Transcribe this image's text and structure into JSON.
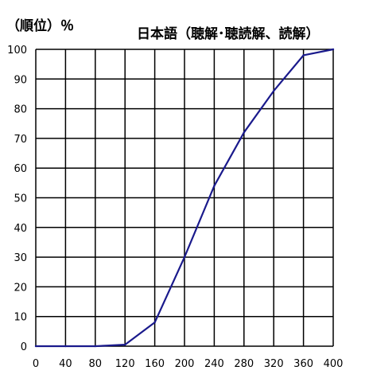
{
  "chart_data": {
    "type": "line",
    "title": "日本語（聴解･聴読解、読解）",
    "ylabel": "（順位）％",
    "xlabel": "",
    "x": [
      0,
      40,
      80,
      120,
      160,
      200,
      240,
      280,
      320,
      360,
      400
    ],
    "xlim": [
      0,
      400
    ],
    "ylim": [
      0,
      100
    ],
    "x_ticks": [
      "0",
      "40",
      "80",
      "120",
      "160",
      "200",
      "240",
      "280",
      "320",
      "360",
      "400"
    ],
    "y_ticks": [
      "0",
      "10",
      "20",
      "30",
      "40",
      "50",
      "60",
      "70",
      "80",
      "90",
      "100"
    ],
    "grid": true,
    "series": [
      {
        "values": [
          0,
          0,
          0,
          0.5,
          8,
          30,
          54,
          72,
          86,
          98,
          100
        ],
        "color": "#1a1a8c"
      }
    ]
  }
}
